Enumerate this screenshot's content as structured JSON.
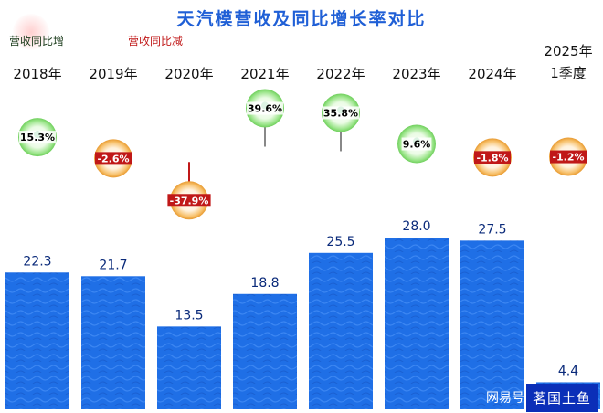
{
  "chart_data": {
    "type": "bar",
    "title": "天汽模营收及同比增长率对比",
    "categories": [
      "2018年",
      "2019年",
      "2020年",
      "2021年",
      "2022年",
      "2023年",
      "2024年",
      "2025年 1季度"
    ],
    "series": [
      {
        "values": [
          22.3,
          21.7,
          13.5,
          18.8,
          25.5,
          28.0,
          27.5,
          4.4
        ]
      }
    ],
    "growth_rate_labels": [
      "15.3%",
      "-2.6%",
      "-37.9%",
      "39.6%",
      "35.8%",
      "9.6%",
      "-1.8%",
      "-1.2%"
    ],
    "growth_rate_values": [
      15.3,
      -2.6,
      -37.9,
      39.6,
      35.8,
      9.6,
      -1.8,
      -1.2
    ],
    "value_labels": [
      "22.3",
      "21.7",
      "13.5",
      "18.8",
      "25.5",
      "28.0",
      "27.5",
      "4.4"
    ],
    "legend": {
      "increase": "营收同比增",
      "decrease": "营收同比减",
      "placement": "top-left"
    },
    "colors": {
      "bar": "#1f6fe6",
      "title": "#1f5fd6",
      "increase": "#7fdc6a",
      "decrease": "#f2a640",
      "negative_text": "#c01818"
    },
    "ylim": [
      0,
      30
    ],
    "grid": false
  },
  "watermark": {
    "prefix": "网易号",
    "name": "茗国土鱼"
  }
}
